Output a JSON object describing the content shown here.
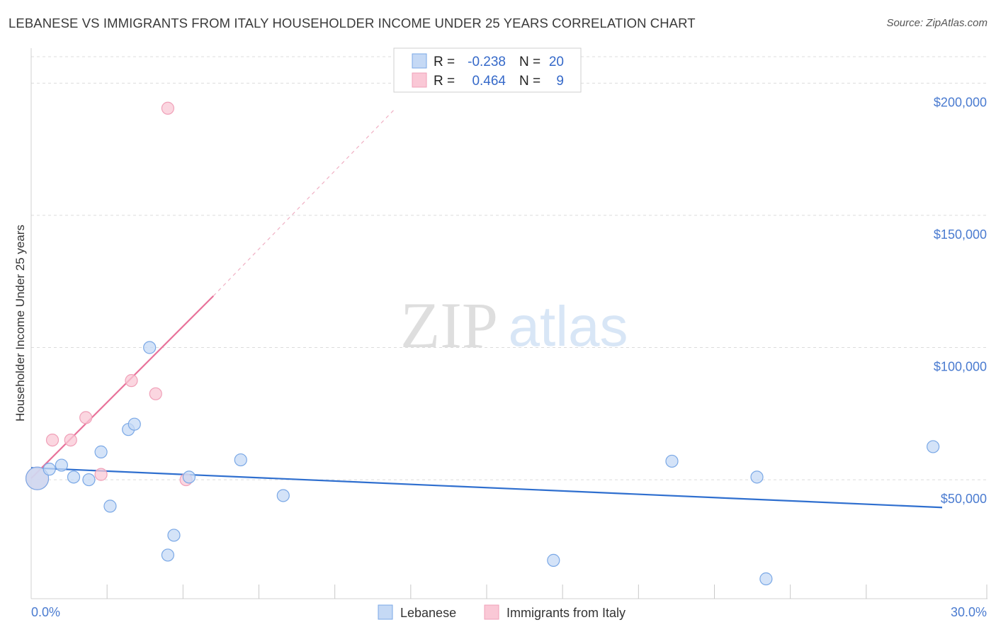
{
  "title": "LEBANESE VS IMMIGRANTS FROM ITALY HOUSEHOLDER INCOME UNDER 25 YEARS CORRELATION CHART",
  "source": "Source: ZipAtlas.com",
  "watermark": {
    "zip": "ZIP",
    "atlas": "atlas"
  },
  "chart_data": {
    "type": "scatter",
    "title": "LEBANESE VS IMMIGRANTS FROM ITALY HOUSEHOLDER INCOME UNDER 25 YEARS CORRELATION CHART",
    "xlabel": "",
    "ylabel": "Householder Income Under 25 years",
    "xlim": [
      0,
      30
    ],
    "ylim": [
      5000,
      210000
    ],
    "x_tick_labels": [
      "0.0%",
      "30.0%"
    ],
    "y_ticks": [
      50000,
      100000,
      150000,
      200000
    ],
    "y_tick_labels": [
      "$50,000",
      "$100,000",
      "$150,000",
      "$200,000"
    ],
    "grid": true,
    "legend": {
      "position": "top-center",
      "entries": [
        {
          "name": "Lebanese",
          "r_label": "R =",
          "r_value": "-0.238",
          "n_label": "N =",
          "n_value": "20"
        },
        {
          "name": "Immigrants from Italy",
          "r_label": "R =",
          "r_value": "0.464",
          "n_label": "N =",
          "n_value": "9"
        }
      ]
    },
    "series": [
      {
        "name": "Lebanese",
        "color": "#7aa8e6",
        "fill": "#c5d9f5",
        "points": [
          {
            "x": 0.2,
            "y": 50500,
            "size": "large"
          },
          {
            "x": 0.6,
            "y": 54000
          },
          {
            "x": 1.0,
            "y": 55500
          },
          {
            "x": 1.4,
            "y": 51000
          },
          {
            "x": 1.9,
            "y": 50000
          },
          {
            "x": 2.3,
            "y": 60500
          },
          {
            "x": 2.6,
            "y": 40000
          },
          {
            "x": 3.2,
            "y": 69000
          },
          {
            "x": 3.4,
            "y": 71000
          },
          {
            "x": 3.9,
            "y": 100000
          },
          {
            "x": 4.5,
            "y": 21500
          },
          {
            "x": 4.7,
            "y": 29000
          },
          {
            "x": 5.2,
            "y": 51000
          },
          {
            "x": 6.9,
            "y": 57500
          },
          {
            "x": 8.3,
            "y": 44000
          },
          {
            "x": 17.2,
            "y": 19500
          },
          {
            "x": 21.1,
            "y": 57000
          },
          {
            "x": 23.9,
            "y": 51000
          },
          {
            "x": 24.2,
            "y": 12500
          },
          {
            "x": 29.7,
            "y": 62500
          }
        ],
        "trend": {
          "x1": 0,
          "y1": 54500,
          "x2": 30,
          "y2": 39500
        }
      },
      {
        "name": "Immigrants from Italy",
        "color": "#f0a0b8",
        "fill": "#fac8d6",
        "points": [
          {
            "x": 0.2,
            "y": 50500,
            "size": "large"
          },
          {
            "x": 0.7,
            "y": 65000
          },
          {
            "x": 1.3,
            "y": 65000
          },
          {
            "x": 1.8,
            "y": 73500
          },
          {
            "x": 2.3,
            "y": 52000
          },
          {
            "x": 3.3,
            "y": 87500
          },
          {
            "x": 4.1,
            "y": 82500
          },
          {
            "x": 4.5,
            "y": 190500
          },
          {
            "x": 5.1,
            "y": 50000
          }
        ],
        "trend": {
          "x1": 0,
          "y1": 50500,
          "x2": 6.0,
          "y2": 119500,
          "dash_to_x": 12.0,
          "dash_to_y": 190500
        }
      }
    ]
  }
}
